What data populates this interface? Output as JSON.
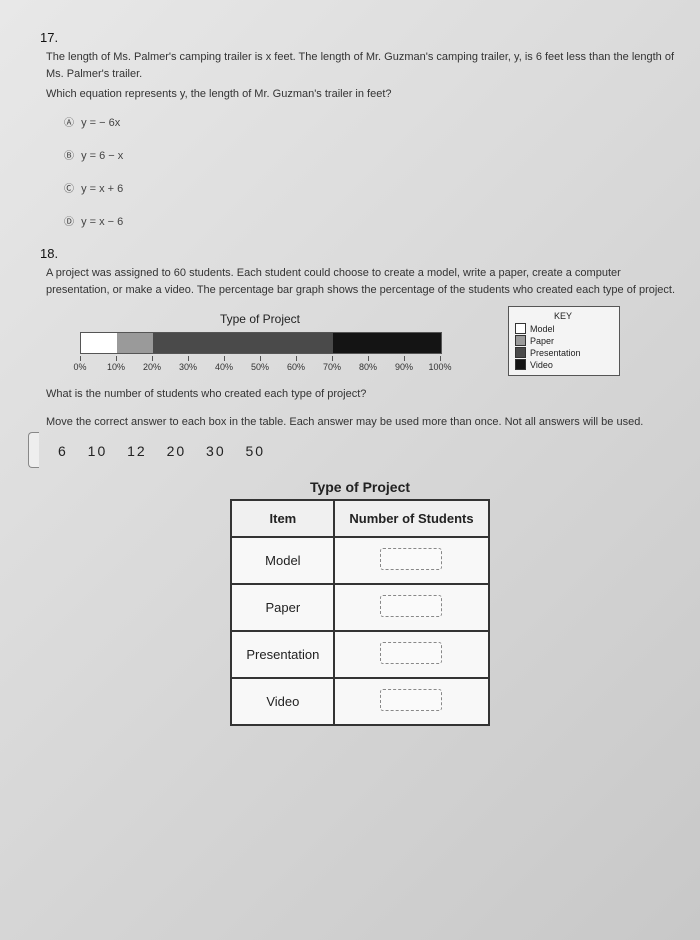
{
  "q17": {
    "number": "17.",
    "prompt": "The length of Ms. Palmer's camping trailer is x feet. The length of Mr. Guzman's camping trailer, y, is 6 feet less than the length of Ms. Palmer's trailer.",
    "subprompt": "Which equation represents y, the length of Mr. Guzman's trailer in feet?",
    "choices": {
      "a": {
        "label": "Ⓐ",
        "text": "y = − 6x"
      },
      "b": {
        "label": "Ⓑ",
        "text": "y = 6 − x"
      },
      "c": {
        "label": "Ⓒ",
        "text": "y = x + 6"
      },
      "d": {
        "label": "Ⓓ",
        "text": "y = x − 6"
      }
    }
  },
  "q18": {
    "number": "18.",
    "prompt": "A project was assigned to 60 students. Each student could choose to create a model, write a paper, create a computer presentation, or make a video. The percentage bar graph shows the percentage of the students who created each type of project.",
    "chart": {
      "title": "Type of Project",
      "key_title": "KEY",
      "segments": [
        {
          "label": "Model",
          "pct": 10,
          "fill": "#ffffff"
        },
        {
          "label": "Paper",
          "pct": 10,
          "fill": "#9a9a9a"
        },
        {
          "label": "Presentation",
          "pct": 50,
          "fill": "#4a4a4a"
        },
        {
          "label": "Video",
          "pct": 30,
          "fill": "#141414"
        }
      ],
      "ticks": [
        "0%",
        "10%",
        "20%",
        "30%",
        "40%",
        "50%",
        "60%",
        "70%",
        "80%",
        "90%",
        "100%"
      ]
    },
    "q_text": "What is the number of students who created each type of project?",
    "instr": "Move the correct answer to each box in the table. Each answer may be used more than once. Not all answers will be used.",
    "choices_line": "6   10   12   20   30   50",
    "table": {
      "title": "Type of Project",
      "col1": "Item",
      "col2": "Number of Students",
      "rows": [
        "Model",
        "Paper",
        "Presentation",
        "Video"
      ]
    }
  }
}
